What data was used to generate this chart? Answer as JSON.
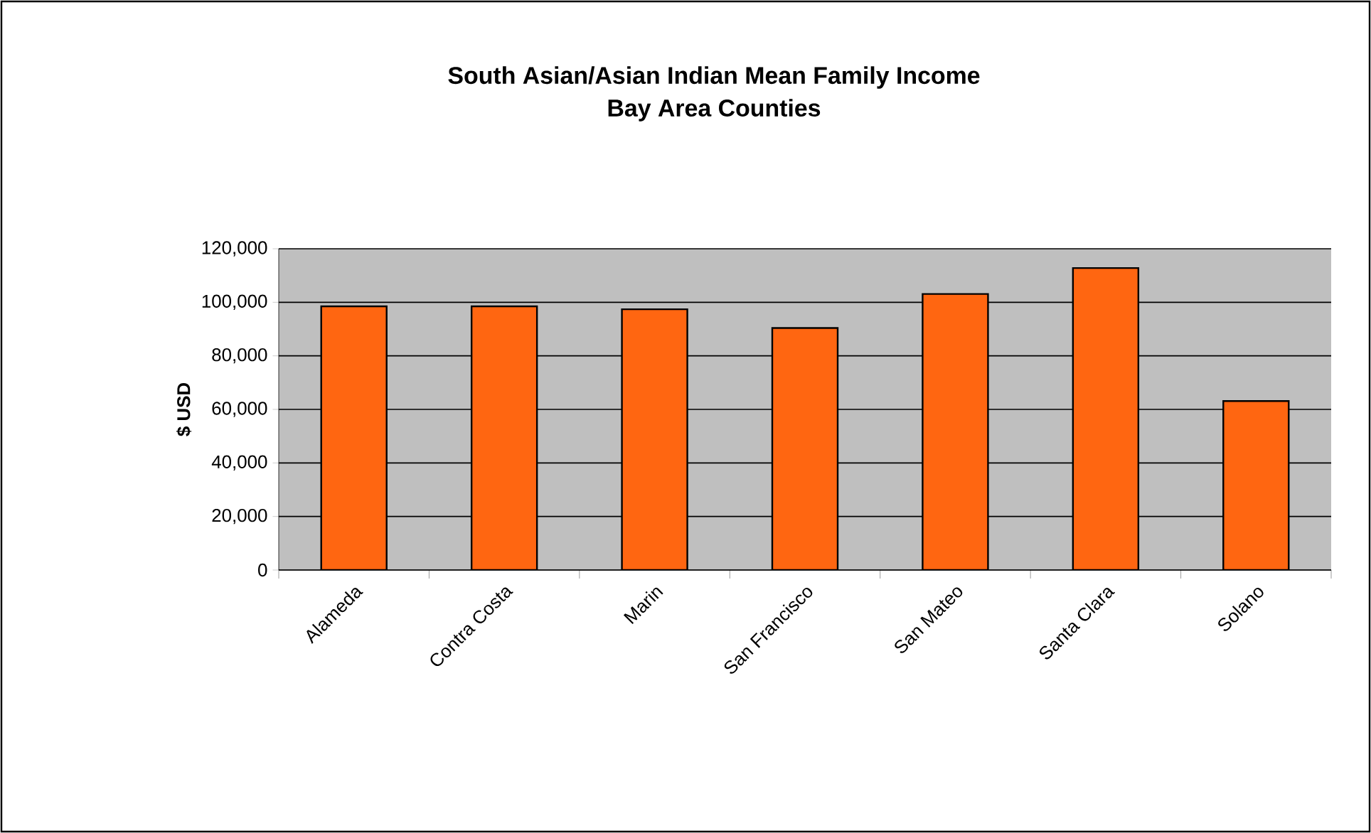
{
  "chart_data": {
    "type": "bar",
    "title": "South Asian/Asian Indian Mean Family Income\nBay Area Counties",
    "ylabel": "$ USD",
    "categories": [
      "Alameda",
      "Contra Costa",
      "Marin",
      "San Francisco",
      "San Mateo",
      "Santa Clara",
      "Solano"
    ],
    "values": [
      98500,
      98500,
      97400,
      90400,
      103100,
      112800,
      63100
    ],
    "color": "#ff6611",
    "ylim": [
      0,
      120000
    ],
    "yticks": [
      {
        "value": 0,
        "label": "0"
      },
      {
        "value": 20000,
        "label": "20,000"
      },
      {
        "value": 40000,
        "label": "40,000"
      },
      {
        "value": 60000,
        "label": "60,000"
      },
      {
        "value": 80000,
        "label": "80,000"
      },
      {
        "value": 100000,
        "label": "100,000"
      },
      {
        "value": 120000,
        "label": "120,000"
      }
    ],
    "grid": "y"
  }
}
